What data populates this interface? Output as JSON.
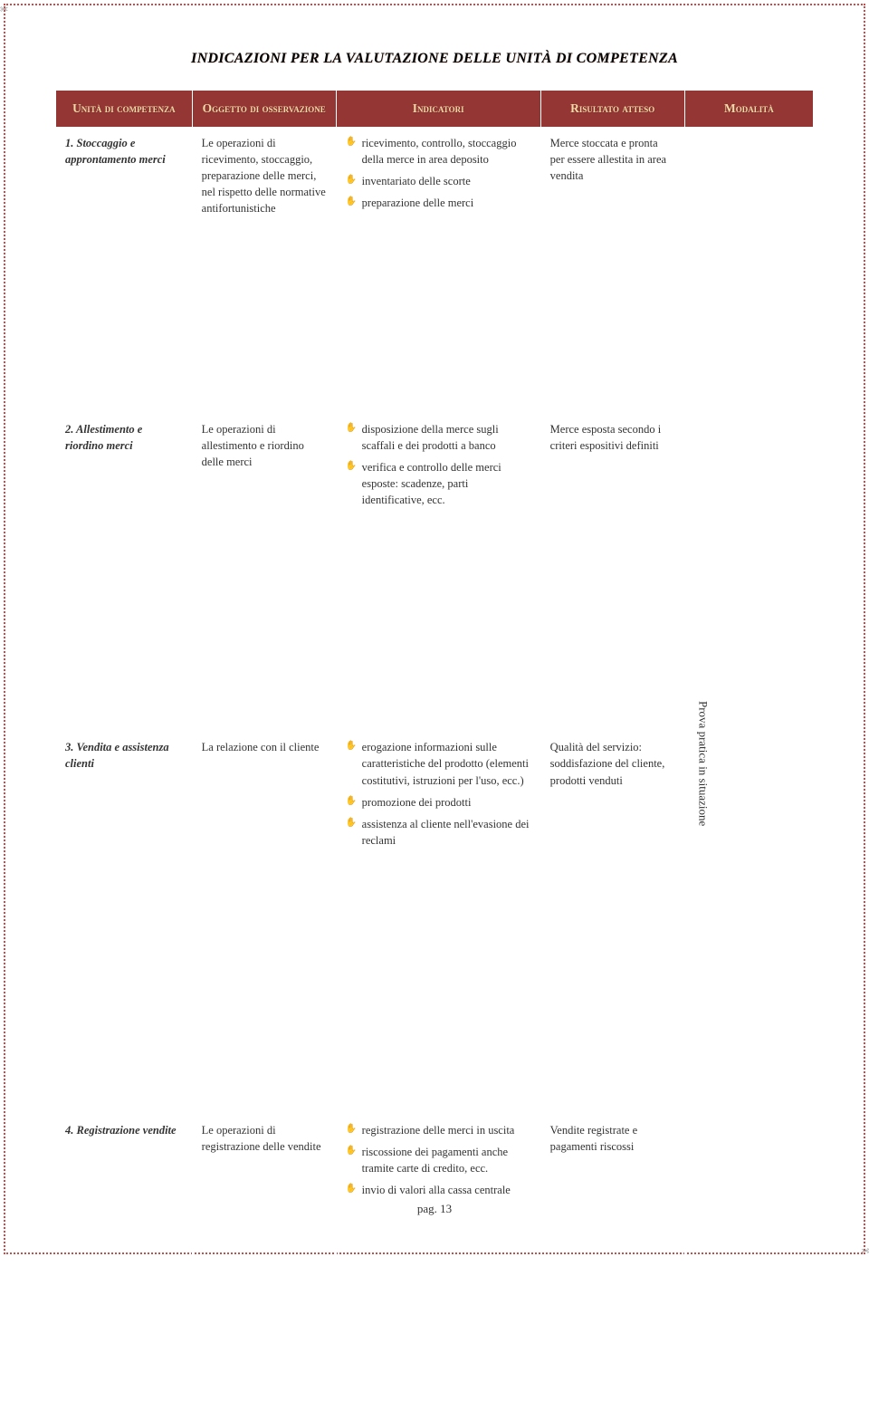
{
  "page_title": "INDICAZIONI PER LA VALUTAZIONE DELLE UNITÀ DI COMPETENZA",
  "headers": {
    "unita": "Unità di competenza",
    "oggetto": "Oggetto di osservazione",
    "indicatori": "Indicatori",
    "risultato": "Risultato atteso",
    "modalita": "Modalità"
  },
  "rows": [
    {
      "unita": "1. Stoccaggio e approntamento merci",
      "oggetto": "Le operazioni di ricevimento, stoccaggio, preparazione delle merci, nel rispetto delle normative antifortunistiche",
      "indicatori": [
        "ricevimento, controllo, stoccaggio della merce in area deposito",
        "inventariato delle scorte",
        "preparazione delle merci"
      ],
      "risultato": "Merce stoccata e pronta per essere allestita in area vendita"
    },
    {
      "unita": "2. Allestimento e riordino merci",
      "oggetto": "Le operazioni di allestimento e riordino delle merci",
      "indicatori": [
        "disposizione della merce sugli scaffali e dei prodotti a banco",
        "verifica e controllo delle merci esposte: scadenze, parti identificative, ecc."
      ],
      "risultato": "Merce esposta secondo i criteri espositivi definiti"
    },
    {
      "unita": "3. Vendita e assistenza clienti",
      "oggetto": "La relazione con il cliente",
      "indicatori": [
        "erogazione informazioni sulle caratteristiche del prodotto (elementi costitutivi, istruzioni per l'uso, ecc.)",
        "promozione dei prodotti",
        "assistenza al cliente nell'evasione dei reclami"
      ],
      "risultato": "Qualità del servizio: soddisfazione del cliente, prodotti venduti"
    },
    {
      "unita": "4. Registrazione vendite",
      "oggetto": "Le operazioni di registrazione delle vendite",
      "indicatori": [
        "registrazione delle merci in uscita",
        "riscossione dei pagamenti anche tramite carte di credito, ecc.",
        "invio di valori alla cassa centrale"
      ],
      "risultato": "Vendite registrate e pagamenti riscossi"
    }
  ],
  "modalita_text": "Prova pratica in situazione",
  "page_number": "pag. 13",
  "colors": {
    "border_dotted": "#c0504d",
    "header_bg": "#943634",
    "header_text": "#f5d9a6"
  }
}
